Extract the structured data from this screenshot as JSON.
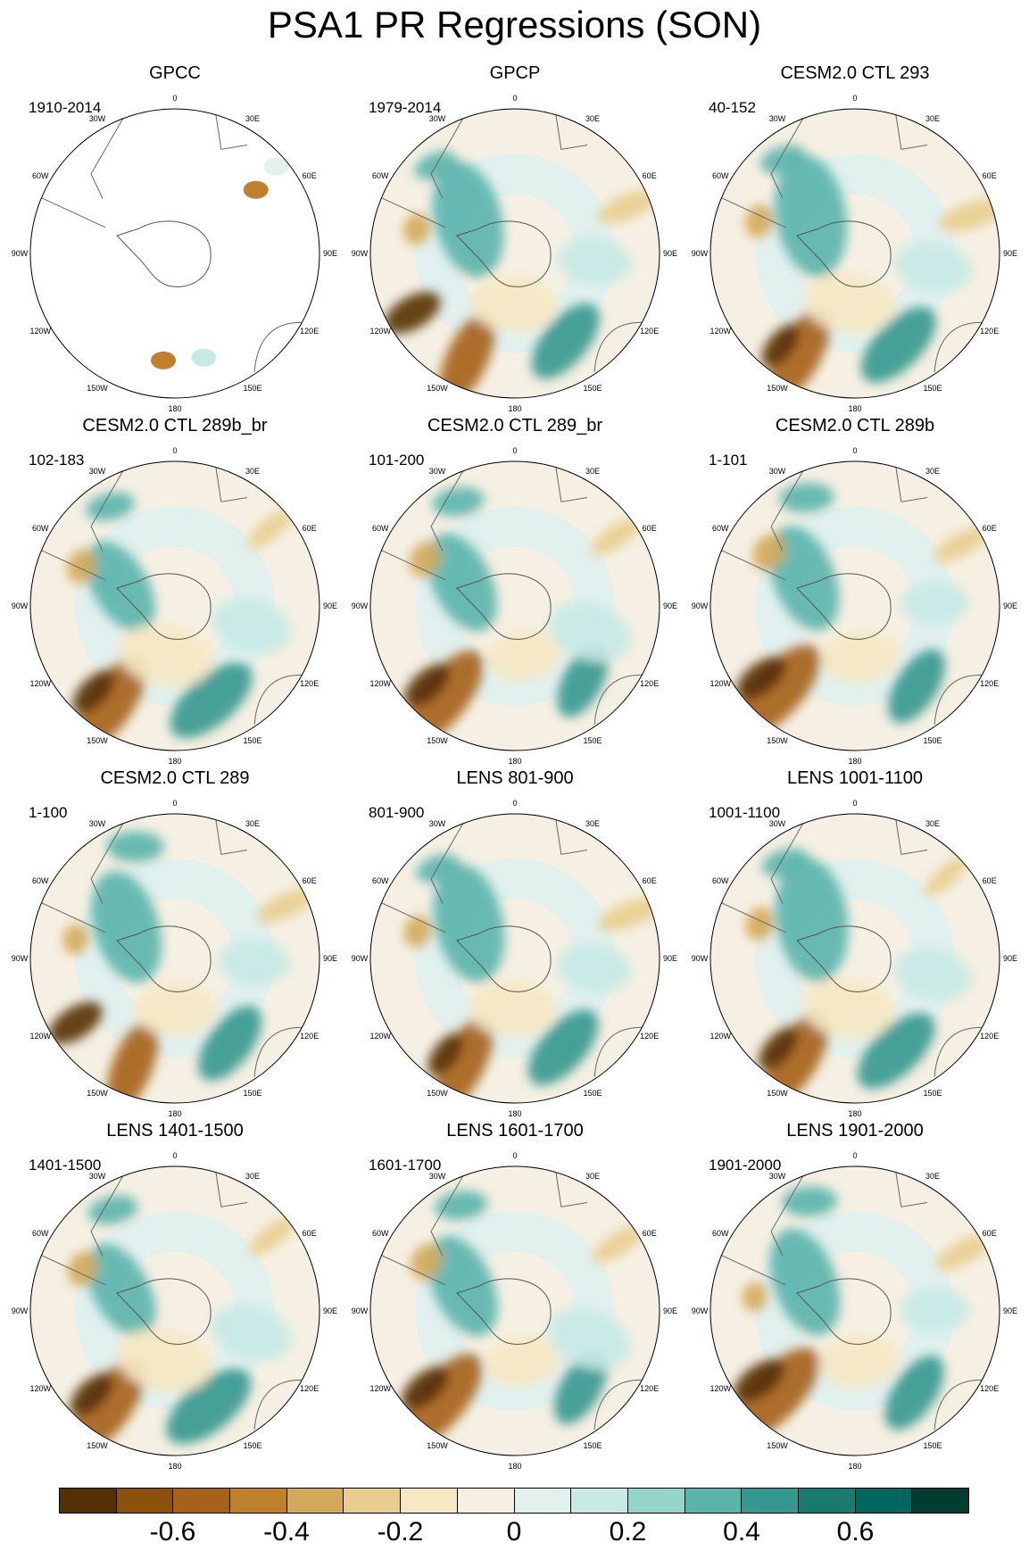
{
  "title": "PSA1 PR Regressions (SON)",
  "longitude_labels": [
    "0",
    "30E",
    "60E",
    "90E",
    "120E",
    "150E",
    "180",
    "150W",
    "120W",
    "90W",
    "60W",
    "30W"
  ],
  "panels": [
    {
      "title": "GPCC",
      "years": "1910-2014"
    },
    {
      "title": "GPCP",
      "years": "1979-2014"
    },
    {
      "title": "CESM2.0 CTL 293",
      "years": "40-152"
    },
    {
      "title": "CESM2.0 CTL 289b_br",
      "years": "102-183"
    },
    {
      "title": "CESM2.0 CTL 289_br",
      "years": "101-200"
    },
    {
      "title": "CESM2.0 CTL 289b",
      "years": "1-101"
    },
    {
      "title": "CESM2.0 CTL 289",
      "years": "1-100"
    },
    {
      "title": "LENS 801-900",
      "years": "801-900"
    },
    {
      "title": "LENS 1001-1100",
      "years": "1001-1100"
    },
    {
      "title": "LENS 1401-1500",
      "years": "1401-1500"
    },
    {
      "title": "LENS 1601-1700",
      "years": "1601-1700"
    },
    {
      "title": "LENS 1901-2000",
      "years": "1901-2000"
    }
  ],
  "colorbar": {
    "colors": [
      "#543005",
      "#8c510a",
      "#a6611a",
      "#bf812d",
      "#d4a85a",
      "#e9cd8f",
      "#f6e8c3",
      "#f5f0e3",
      "#e2f0ee",
      "#c7eae5",
      "#95d5c9",
      "#5ab4ac",
      "#35978f",
      "#1b7a6e",
      "#01665e",
      "#003c30"
    ],
    "tick_labels": [
      "-0.6",
      "-0.4",
      "-0.2",
      "0",
      "0.2",
      "0.4",
      "0.6"
    ],
    "tick_values": [
      -0.6,
      -0.4,
      -0.2,
      0,
      0.2,
      0.4,
      0.6
    ]
  }
}
